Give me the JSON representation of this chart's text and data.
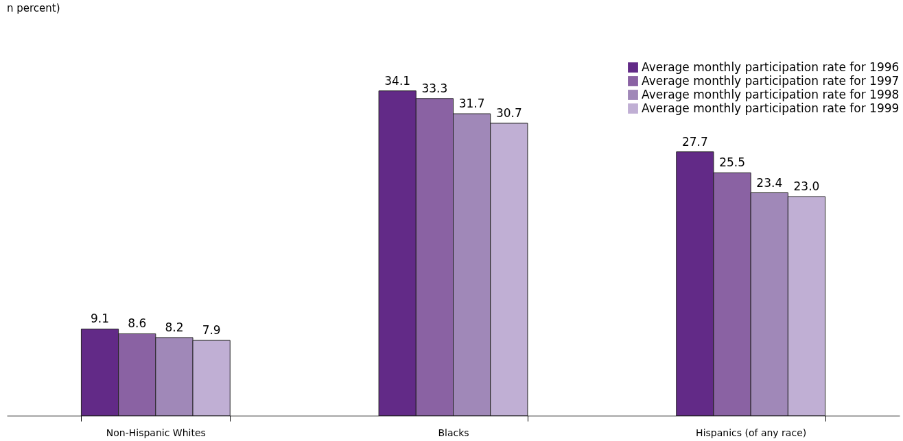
{
  "chart_data": {
    "type": "bar",
    "subtitle": "n percent)",
    "categories": [
      "Non-Hispanic Whites",
      "Blacks",
      "Hispanics (of any race)"
    ],
    "series": [
      {
        "name": "Average monthly participation rate for 1996",
        "color": "#622a87",
        "values": [
          9.1,
          34.1,
          27.7
        ],
        "value_labels": [
          "9.1",
          "34.1",
          "27.7"
        ]
      },
      {
        "name": "Average monthly participation rate for 1997",
        "color": "#8a62a3",
        "values": [
          8.6,
          33.3,
          25.5
        ],
        "value_labels": [
          "8.6",
          "33.3",
          "25.5"
        ]
      },
      {
        "name": "Average monthly participation rate for 1998",
        "color": "#a088b8",
        "values": [
          8.2,
          31.7,
          23.4
        ],
        "value_labels": [
          "8.2",
          "31.7",
          "23.4"
        ]
      },
      {
        "name": "Average monthly participation rate for 1999",
        "color": "#c0afd4",
        "values": [
          7.9,
          30.7,
          23.0
        ],
        "value_labels": [
          "7.9",
          "30.7",
          "23.0"
        ]
      }
    ],
    "legend": "top right",
    "grid": false
  }
}
